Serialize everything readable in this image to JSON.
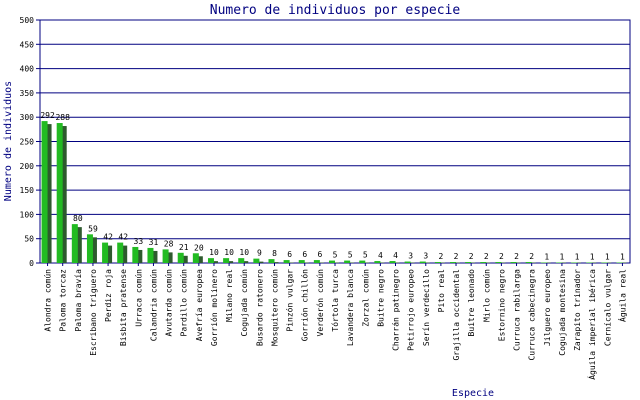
{
  "chart_data": {
    "type": "bar",
    "title": "Numero de individuos por especie",
    "xlabel": "Especie",
    "ylabel": "Numero de individuos",
    "ylim": [
      0,
      500
    ],
    "yticks": [
      0,
      50,
      100,
      150,
      200,
      250,
      300,
      350,
      400,
      450,
      500
    ],
    "grid": true,
    "colors": {
      "bar": "#22bb22",
      "shadow": "#2e5a2e",
      "grid": "#000080",
      "frame": "#000080",
      "text": "#000080"
    },
    "categories": [
      "Alondra común",
      "Paloma torcaz",
      "Paloma bravía",
      "Escribano triguero",
      "Perdiz roja",
      "Bisbita pratense",
      "Urraca común",
      "Calandria común",
      "Avutarda común",
      "Pardillo común",
      "Avefría europea",
      "Gorrión molinero",
      "Milano real",
      "Cogujada común",
      "Busardo ratonero",
      "Mosquitero común",
      "Pinzón vulgar",
      "Gorrión chillón",
      "Verderón común",
      "Tórtola turca",
      "Lavandera blanca",
      "Zorzal común",
      "Buitre negro",
      "Charrán patinegro",
      "Petirrojo europeo",
      "Serín verdecillo",
      "Pito real",
      "Grajilla occidental",
      "Buitre leonado",
      "Mirlo común",
      "Estornino negro",
      "Curruca rabilarga",
      "Curruca cabecinegra",
      "Jilguero europeo",
      "Cogujada montesina",
      "Zarapito trinador",
      "Águila imperial ibérica",
      "Cernícalo vulgar",
      "Águila real"
    ],
    "values": [
      292,
      288,
      80,
      59,
      42,
      42,
      33,
      31,
      28,
      21,
      20,
      10,
      10,
      10,
      9,
      8,
      6,
      6,
      6,
      5,
      5,
      5,
      4,
      4,
      3,
      3,
      2,
      2,
      2,
      2,
      2,
      2,
      2,
      1,
      1,
      1,
      1,
      1,
      1
    ],
    "value_labels": [
      "292",
      "288",
      "80",
      "59",
      "42",
      "42",
      "33",
      "31",
      "28",
      "21",
      "20",
      "10",
      "10",
      "10",
      "9",
      "8",
      "6",
      "6",
      "6",
      "5",
      "5",
      "5",
      "4",
      "4",
      "3",
      "3",
      "2",
      "2",
      "2",
      "2",
      "2",
      "2",
      "2",
      "1",
      "1",
      "1",
      "1",
      "1",
      "1"
    ]
  }
}
